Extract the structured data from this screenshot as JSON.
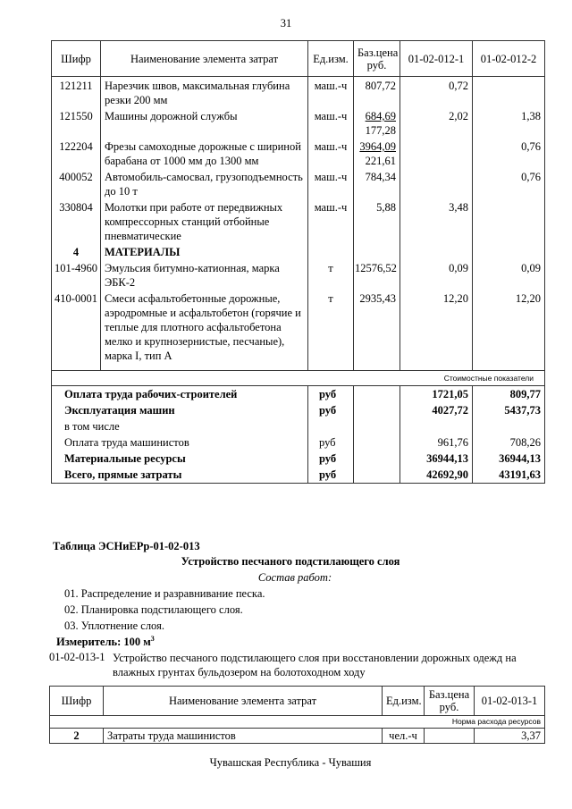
{
  "page_number": "31",
  "table1": {
    "headers": [
      "Шифр",
      "Наименование элемента затрат",
      "Ед.изм.",
      "Баз.цена руб.",
      "01-02-012-1",
      "01-02-012-2"
    ],
    "rows": [
      {
        "code": "121211",
        "name": "Нарезчик швов, максимальная глубина резки 200 мм",
        "unit": "маш.-ч",
        "price": "807,72",
        "price2": "",
        "v1": "0,72",
        "v2": ""
      },
      {
        "code": "121550",
        "name": "Машины дорожной службы",
        "unit": "маш.-ч",
        "price": "684,69",
        "price2": "177,28",
        "v1": "2,02",
        "v2": "1,38"
      },
      {
        "code": "122204",
        "name": "Фрезы самоходные дорожные с шириной барабана от 1000 мм до 1300 мм",
        "unit": "маш.-ч",
        "price": "3964,09",
        "price2": "221,61",
        "v1": "",
        "v2": "0,76"
      },
      {
        "code": "400052",
        "name": "Автомобиль-самосвал, грузоподъемность до 10 т",
        "unit": "маш.-ч",
        "price": "784,34",
        "price2": "",
        "v1": "",
        "v2": "0,76"
      },
      {
        "code": "330804",
        "name": "Молотки при работе от передвижных компрессорных станций отбойные пневматические",
        "unit": "маш.-ч",
        "price": "5,88",
        "price2": "",
        "v1": "3,48",
        "v2": ""
      }
    ],
    "section": {
      "code": "4",
      "name": "МАТЕРИАЛЫ"
    },
    "materials": [
      {
        "code": "101-4960",
        "name": "Эмульсия битумно-катионная, марка ЭБК-2",
        "unit": "т",
        "price": "12576,52",
        "v1": "0,09",
        "v2": "0,09"
      },
      {
        "code": "410-0001",
        "name": "Смеси асфальтобетонные дорожные, аэродромные и асфальтобетон (горячие и теплые для плотного асфальтобетона мелко и крупнозернистые, песчаные), марка I, тип А",
        "unit": "т",
        "price": "2935,43",
        "v1": "12,20",
        "v2": "12,20"
      }
    ],
    "cost_label": "Стоимостные показатели",
    "summary": [
      {
        "label": "Оплата труда рабочих-строителей",
        "unit": "руб",
        "v1": "1721,05",
        "v2": "809,77",
        "bold": true
      },
      {
        "label": "Эксплуатация машин",
        "unit": "руб",
        "v1": "4027,72",
        "v2": "5437,73",
        "bold": true
      },
      {
        "label": "в том числе",
        "unit": "",
        "v1": "",
        "v2": "",
        "bold": false
      },
      {
        "label": "Оплата труда машинистов",
        "unit": "руб",
        "v1": "961,76",
        "v2": "708,26",
        "bold": false
      },
      {
        "label": "Материальные ресурсы",
        "unit": "руб",
        "v1": "36944,13",
        "v2": "36944,13",
        "bold": true
      },
      {
        "label": "Всего, прямые затраты",
        "unit": "руб",
        "v1": "42692,90",
        "v2": "43191,63",
        "bold": true
      }
    ]
  },
  "section2": {
    "table_title": "Таблица  ЭСНиЕРр-01-02-013",
    "heading": "Устройство песчаного подстилающего слоя",
    "composition_label": "Состав работ:",
    "steps": [
      "01. Распределение и разравнивание песка.",
      "02. Планировка подстилающего слоя.",
      "03. Уплотнение слоя."
    ],
    "measure_label": "Измеритель: 100 м",
    "measure_sup": "3",
    "item_code": "01-02-013-1",
    "item_text": "Устройство песчаного подстилающего слоя при восстановлении дорожных одежд на влажных грунтах бульдозером на болотоходном ходу"
  },
  "table2": {
    "headers": [
      "Шифр",
      "Наименование элемента затрат",
      "Ед.изм.",
      "Баз.цена руб.",
      "01-02-013-1"
    ],
    "norm_label": "Норма расхода ресурсов",
    "row": {
      "code": "2",
      "name": "Затраты труда машинистов",
      "unit": "чел.-ч",
      "price": "",
      "v1": "3,37"
    }
  },
  "footer": "Чувашская Республика - Чувашия"
}
